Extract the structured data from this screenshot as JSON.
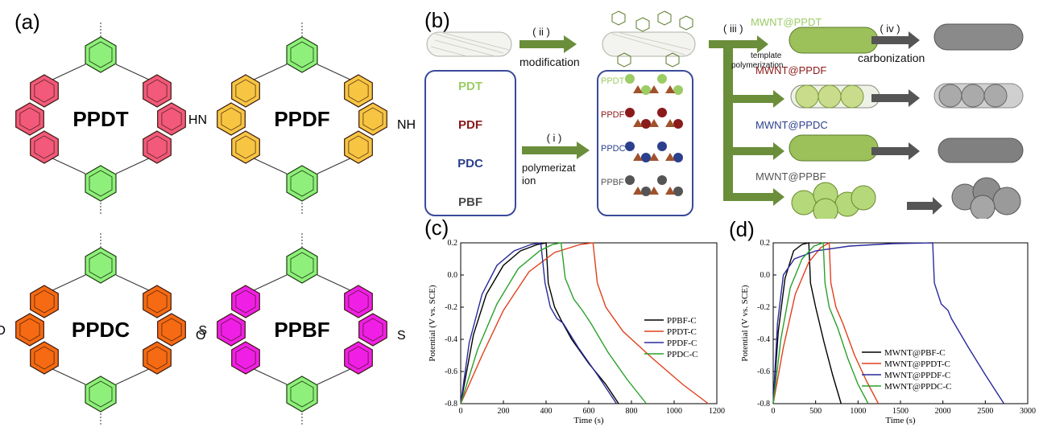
{
  "panels": {
    "a": "(a)",
    "b": "(b)",
    "c": "(c)",
    "d": "(d)"
  },
  "molecules": [
    {
      "name": "PPDT",
      "color": "#f2597a",
      "hetero": ""
    },
    {
      "name": "PPDF",
      "color": "#f7c542",
      "hetero": "NH"
    },
    {
      "name": "PPDC",
      "color": "#f56a12",
      "hetero": "O"
    },
    {
      "name": "PPBF",
      "color": "#f01fe6",
      "hetero": "S"
    }
  ],
  "molecule_labels": {
    "ppdf_left": "HN",
    "ppdf_right": "NH",
    "ppdc_left": "O",
    "ppdc_right": "O",
    "ppbf_left": "S",
    "ppbf_right": "S"
  },
  "scheme": {
    "step_ii": "( ii )",
    "modification": "modification",
    "step_iii": "( iii )",
    "template_polymerization": "template polymerization",
    "step_iv": "( iv )",
    "carbonization": "carbonization",
    "step_i": "( i )",
    "polymerization": "polymerizat ion",
    "monomers": [
      {
        "label": "PDT",
        "color": "#9ccc65"
      },
      {
        "label": "PDF",
        "color": "#8b1a1a"
      },
      {
        "label": "PDC",
        "color": "#2b3f8c"
      },
      {
        "label": "PBF",
        "color": "#4a4a4a"
      }
    ],
    "polymers": [
      {
        "label": "PPDT",
        "color": "#9ccc65"
      },
      {
        "label": "PPDF",
        "color": "#8b1a1a"
      },
      {
        "label": "PPDC",
        "color": "#2b3f8c"
      },
      {
        "label": "PPBF",
        "color": "#555555"
      }
    ],
    "composites": [
      {
        "label": "MWNT@PPDT",
        "color": "#9ccc65"
      },
      {
        "label": "MWNT@PPDF",
        "color": "#8b1a1a"
      },
      {
        "label": "MWNT@PPDC",
        "color": "#2b3f8c"
      },
      {
        "label": "MWNT@PPBF",
        "color": "#555555"
      }
    ]
  },
  "chart_data": [
    {
      "type": "line",
      "panel": "(c)",
      "xlabel": "Time (s)",
      "ylabel": "Potential (V vs. SCE)",
      "xlim": [
        0,
        1200
      ],
      "ylim": [
        -0.8,
        0.2
      ],
      "xticks": [
        0,
        200,
        400,
        600,
        800,
        1000,
        1200
      ],
      "yticks": [
        -0.8,
        -0.6,
        -0.4,
        -0.2,
        0.0,
        0.2
      ],
      "xtick_labels": [
        "0",
        "200",
        "400",
        "600",
        "800",
        "1000",
        "1200"
      ],
      "ytick_labels": [
        "-0.8",
        "-0.6",
        "-0.4",
        "-0.2",
        "0.0",
        "0.2"
      ],
      "series": [
        {
          "name": "PPBF-C",
          "color": "#000000",
          "points": [
            [
              0,
              -0.8
            ],
            [
              60,
              -0.37
            ],
            [
              120,
              -0.12
            ],
            [
              200,
              0.06
            ],
            [
              280,
              0.15
            ],
            [
              360,
              0.19
            ],
            [
              400,
              0.2
            ],
            [
              410,
              -0.05
            ],
            [
              440,
              -0.2
            ],
            [
              470,
              -0.28
            ],
            [
              520,
              -0.4
            ],
            [
              600,
              -0.55
            ],
            [
              680,
              -0.68
            ],
            [
              740,
              -0.8
            ]
          ]
        },
        {
          "name": "PPDT-C",
          "color": "#e0401c",
          "points": [
            [
              0,
              -0.8
            ],
            [
              100,
              -0.5
            ],
            [
              200,
              -0.22
            ],
            [
              320,
              0.02
            ],
            [
              440,
              0.14
            ],
            [
              560,
              0.19
            ],
            [
              620,
              0.2
            ],
            [
              640,
              -0.05
            ],
            [
              680,
              -0.2
            ],
            [
              760,
              -0.35
            ],
            [
              900,
              -0.52
            ],
            [
              1040,
              -0.68
            ],
            [
              1160,
              -0.8
            ]
          ]
        },
        {
          "name": "PPDF-C",
          "color": "#2a2a9c",
          "points": [
            [
              0,
              -0.8
            ],
            [
              40,
              -0.42
            ],
            [
              100,
              -0.12
            ],
            [
              170,
              0.06
            ],
            [
              250,
              0.15
            ],
            [
              330,
              0.19
            ],
            [
              375,
              0.2
            ],
            [
              395,
              -0.05
            ],
            [
              420,
              -0.2
            ],
            [
              450,
              -0.27
            ],
            [
              480,
              -0.3
            ],
            [
              550,
              -0.45
            ],
            [
              640,
              -0.62
            ],
            [
              730,
              -0.8
            ]
          ]
        },
        {
          "name": "PPDC-C",
          "color": "#2ba02b",
          "points": [
            [
              0,
              -0.8
            ],
            [
              80,
              -0.46
            ],
            [
              170,
              -0.18
            ],
            [
              270,
              0.04
            ],
            [
              370,
              0.15
            ],
            [
              430,
              0.19
            ],
            [
              470,
              0.2
            ],
            [
              490,
              -0.02
            ],
            [
              530,
              -0.15
            ],
            [
              570,
              -0.22
            ],
            [
              610,
              -0.3
            ],
            [
              690,
              -0.48
            ],
            [
              780,
              -0.65
            ],
            [
              870,
              -0.8
            ]
          ]
        }
      ]
    },
    {
      "type": "line",
      "panel": "(d)",
      "xlabel": "Time (s)",
      "ylabel": "Potential (V vs. SCE)",
      "xlim": [
        0,
        3000
      ],
      "ylim": [
        -0.8,
        0.2
      ],
      "xticks": [
        0,
        500,
        1000,
        1500,
        2000,
        2500,
        3000
      ],
      "yticks": [
        -0.8,
        -0.6,
        -0.4,
        -0.2,
        0.0,
        0.2
      ],
      "xtick_labels": [
        "0",
        "500",
        "1000",
        "1500",
        "2000",
        "2500",
        "3000"
      ],
      "ytick_labels": [
        "-0.8",
        "-0.6",
        "-0.4",
        "-0.2",
        "0.0",
        "0.2"
      ],
      "series": [
        {
          "name": "MWNT@PBF-C",
          "color": "#000000",
          "points": [
            [
              0,
              -0.8
            ],
            [
              60,
              -0.35
            ],
            [
              140,
              -0.02
            ],
            [
              240,
              0.15
            ],
            [
              340,
              0.19
            ],
            [
              420,
              0.2
            ],
            [
              440,
              -0.05
            ],
            [
              500,
              -0.2
            ],
            [
              600,
              -0.42
            ],
            [
              700,
              -0.62
            ],
            [
              800,
              -0.8
            ]
          ]
        },
        {
          "name": "MWNT@PPDT-C",
          "color": "#e0401c",
          "points": [
            [
              0,
              -0.8
            ],
            [
              120,
              -0.45
            ],
            [
              260,
              -0.12
            ],
            [
              420,
              0.08
            ],
            [
              560,
              0.17
            ],
            [
              660,
              0.2
            ],
            [
              680,
              -0.05
            ],
            [
              740,
              -0.2
            ],
            [
              820,
              -0.3
            ],
            [
              960,
              -0.5
            ],
            [
              1100,
              -0.66
            ],
            [
              1240,
              -0.8
            ]
          ]
        },
        {
          "name": "MWNT@PPDF-C",
          "color": "#2a2a9c",
          "points": [
            [
              0,
              -0.8
            ],
            [
              50,
              -0.3
            ],
            [
              120,
              0.0
            ],
            [
              250,
              0.1
            ],
            [
              500,
              0.15
            ],
            [
              900,
              0.18
            ],
            [
              1400,
              0.195
            ],
            [
              1880,
              0.2
            ],
            [
              1900,
              -0.05
            ],
            [
              1980,
              -0.18
            ],
            [
              2060,
              -0.22
            ],
            [
              2100,
              -0.27
            ],
            [
              2300,
              -0.45
            ],
            [
              2500,
              -0.62
            ],
            [
              2720,
              -0.8
            ]
          ]
        },
        {
          "name": "MWNT@PPDC-C",
          "color": "#2ba02b",
          "points": [
            [
              0,
              -0.8
            ],
            [
              90,
              -0.4
            ],
            [
              200,
              -0.08
            ],
            [
              340,
              0.1
            ],
            [
              480,
              0.18
            ],
            [
              590,
              0.2
            ],
            [
              610,
              -0.05
            ],
            [
              660,
              -0.2
            ],
            [
              760,
              -0.33
            ],
            [
              880,
              -0.52
            ],
            [
              1000,
              -0.68
            ],
            [
              1120,
              -0.8
            ]
          ]
        }
      ]
    }
  ]
}
